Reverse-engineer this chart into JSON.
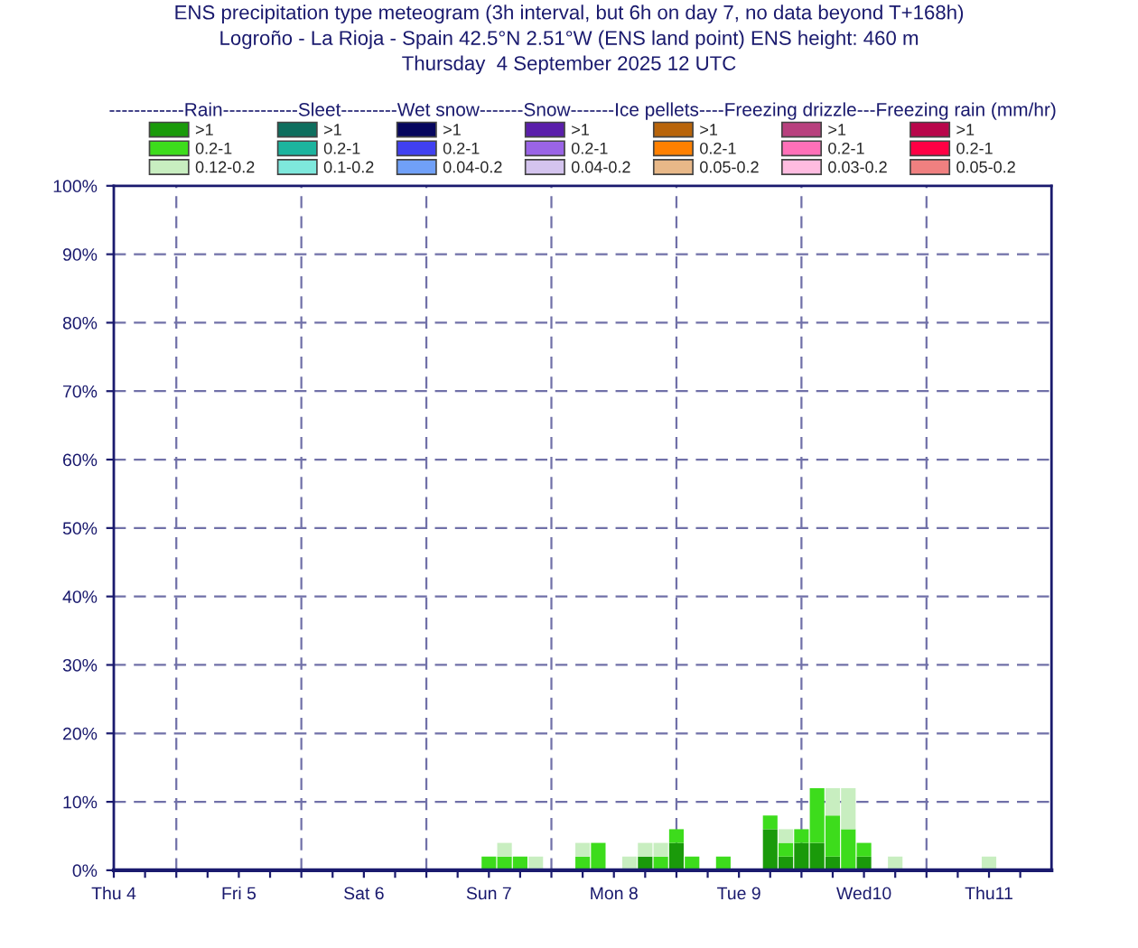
{
  "chart_data": {
    "type": "bar",
    "stacked": true,
    "title": "ENS precipitation type meteogram (3h interval, but 6h on day 7, no data beyond T+168h)",
    "subtitle": "Logroño - La Rioja - Spain 42.5°N 2.51°W (ENS land point) ENS height: 460 m\nThursday  4 September 2025 12 UTC",
    "legend_title": "------------Rain------------Sleet---------Wet snow-------Snow-------Ice pellets----Freezing drizzle---Freezing rain (mm/hr)",
    "x": [
      "2025-09-07T00:00",
      "2025-09-07T03:00",
      "2025-09-07T06:00",
      "2025-09-07T09:00",
      "2025-09-07T18:00",
      "2025-09-07T21:00",
      "2025-09-08T03:00",
      "2025-09-08T06:00",
      "2025-09-08T09:00",
      "2025-09-08T12:00",
      "2025-09-08T15:00",
      "2025-09-08T21:00",
      "2025-09-09T06:00",
      "2025-09-09T09:00",
      "2025-09-09T12:00",
      "2025-09-09T15:00",
      "2025-09-09T18:00",
      "2025-09-09T21:00",
      "2025-09-10T00:00",
      "2025-09-10T06:00",
      "2025-09-11T00:00"
    ],
    "series": [
      {
        "name": ">1",
        "color": "#1a9a0a",
        "values": [
          0,
          0,
          0,
          0,
          0,
          0,
          0,
          2,
          0,
          4,
          0,
          0,
          6,
          2,
          4,
          4,
          2,
          0,
          2,
          0,
          0
        ]
      },
      {
        "name": "0.2-1",
        "color": "#3ddc1c",
        "values": [
          2,
          2,
          2,
          0,
          2,
          4,
          0,
          0,
          2,
          2,
          2,
          2,
          2,
          2,
          2,
          8,
          6,
          6,
          2,
          0,
          0
        ]
      },
      {
        "name": "0.12-0.2",
        "color": "#c8eec0",
        "values": [
          0,
          2,
          0,
          2,
          2,
          0,
          2,
          2,
          2,
          0,
          0,
          0,
          0,
          2,
          0,
          0,
          4,
          6,
          0,
          2,
          2
        ]
      },
      {
        "name": ">1",
        "color": "#0e6e5e",
        "values": [
          0,
          0,
          0,
          0,
          0,
          0,
          0,
          0,
          0,
          0,
          0,
          0,
          0,
          0,
          0,
          0,
          0,
          0,
          0,
          0,
          0
        ]
      },
      {
        "name": "0.2-1",
        "color": "#1cb49e",
        "values": [
          0,
          0,
          0,
          0,
          0,
          0,
          0,
          0,
          0,
          0,
          0,
          0,
          0,
          0,
          0,
          0,
          0,
          0,
          0,
          0,
          0
        ]
      },
      {
        "name": "0.1-0.2",
        "color": "#7ee8dc",
        "values": [
          0,
          0,
          0,
          0,
          0,
          0,
          0,
          0,
          0,
          0,
          0,
          0,
          0,
          0,
          0,
          0,
          0,
          0,
          0,
          0,
          0
        ]
      },
      {
        "name": ">1",
        "color": "#06065e",
        "values": [
          0,
          0,
          0,
          0,
          0,
          0,
          0,
          0,
          0,
          0,
          0,
          0,
          0,
          0,
          0,
          0,
          0,
          0,
          0,
          0,
          0
        ]
      },
      {
        "name": "0.2-1",
        "color": "#4040f0",
        "values": [
          0,
          0,
          0,
          0,
          0,
          0,
          0,
          0,
          0,
          0,
          0,
          0,
          0,
          0,
          0,
          0,
          0,
          0,
          0,
          0,
          0
        ]
      },
      {
        "name": "0.04-0.2",
        "color": "#70a0f8",
        "values": [
          0,
          0,
          0,
          0,
          0,
          0,
          0,
          0,
          0,
          0,
          0,
          0,
          0,
          0,
          0,
          0,
          0,
          0,
          0,
          0,
          0
        ]
      },
      {
        "name": ">1",
        "color": "#5a1eaa",
        "values": [
          0,
          0,
          0,
          0,
          0,
          0,
          0,
          0,
          0,
          0,
          0,
          0,
          0,
          0,
          0,
          0,
          0,
          0,
          0,
          0,
          0
        ]
      },
      {
        "name": "0.2-1",
        "color": "#9a64e6",
        "values": [
          0,
          0,
          0,
          0,
          0,
          0,
          0,
          0,
          0,
          0,
          0,
          0,
          0,
          0,
          0,
          0,
          0,
          0,
          0,
          0,
          0
        ]
      },
      {
        "name": "0.04-0.2",
        "color": "#d4c4ee",
        "values": [
          0,
          0,
          0,
          0,
          0,
          0,
          0,
          0,
          0,
          0,
          0,
          0,
          0,
          0,
          0,
          0,
          0,
          0,
          0,
          0,
          0
        ]
      },
      {
        "name": ">1",
        "color": "#b8640a",
        "values": [
          0,
          0,
          0,
          0,
          0,
          0,
          0,
          0,
          0,
          0,
          0,
          0,
          0,
          0,
          0,
          0,
          0,
          0,
          0,
          0,
          0
        ]
      },
      {
        "name": "0.2-1",
        "color": "#ff8000",
        "values": [
          0,
          0,
          0,
          0,
          0,
          0,
          0,
          0,
          0,
          0,
          0,
          0,
          0,
          0,
          0,
          0,
          0,
          0,
          0,
          0,
          0
        ]
      },
      {
        "name": "0.05-0.2",
        "color": "#e8b888",
        "values": [
          0,
          0,
          0,
          0,
          0,
          0,
          0,
          0,
          0,
          0,
          0,
          0,
          0,
          0,
          0,
          0,
          0,
          0,
          0,
          0,
          0
        ]
      },
      {
        "name": ">1",
        "color": "#b8407e",
        "values": [
          0,
          0,
          0,
          0,
          0,
          0,
          0,
          0,
          0,
          0,
          0,
          0,
          0,
          0,
          0,
          0,
          0,
          0,
          0,
          0,
          0
        ]
      },
      {
        "name": "0.2-1",
        "color": "#ff70b8",
        "values": [
          0,
          0,
          0,
          0,
          0,
          0,
          0,
          0,
          0,
          0,
          0,
          0,
          0,
          0,
          0,
          0,
          0,
          0,
          0,
          0,
          0
        ]
      },
      {
        "name": "0.03-0.2",
        "color": "#ffbce0",
        "values": [
          0,
          0,
          0,
          0,
          0,
          0,
          0,
          0,
          0,
          0,
          0,
          0,
          0,
          0,
          0,
          0,
          0,
          0,
          0,
          0,
          0
        ]
      },
      {
        "name": ">1",
        "color": "#b8064a",
        "values": [
          0,
          0,
          0,
          0,
          0,
          0,
          0,
          0,
          0,
          0,
          0,
          0,
          0,
          0,
          0,
          0,
          0,
          0,
          0,
          0,
          0
        ]
      },
      {
        "name": "0.2-1",
        "color": "#ff0044",
        "values": [
          0,
          0,
          0,
          0,
          0,
          0,
          0,
          0,
          0,
          0,
          0,
          0,
          0,
          0,
          0,
          0,
          0,
          0,
          0,
          0,
          0
        ]
      },
      {
        "name": "0.05-0.2",
        "color": "#f08080",
        "values": [
          0,
          0,
          0,
          0,
          0,
          0,
          0,
          0,
          0,
          0,
          0,
          0,
          0,
          0,
          0,
          0,
          0,
          0,
          0,
          0,
          0
        ]
      }
    ],
    "xlim": [
      "2025-09-04T00:00",
      "2025-09-11T12:00"
    ],
    "xticks": [
      {
        "value": "2025-09-04T00:00",
        "label": "Thu 4"
      },
      {
        "value": "2025-09-04T06:00",
        "label": null
      },
      {
        "value": "2025-09-04T12:00",
        "label": null
      },
      {
        "value": "2025-09-04T18:00",
        "label": null
      },
      {
        "value": "2025-09-05T00:00",
        "label": "Fri 5"
      },
      {
        "value": "2025-09-05T06:00",
        "label": null
      },
      {
        "value": "2025-09-05T12:00",
        "label": null
      },
      {
        "value": "2025-09-05T18:00",
        "label": null
      },
      {
        "value": "2025-09-06T00:00",
        "label": "Sat 6"
      },
      {
        "value": "2025-09-06T06:00",
        "label": null
      },
      {
        "value": "2025-09-06T12:00",
        "label": null
      },
      {
        "value": "2025-09-06T18:00",
        "label": null
      },
      {
        "value": "2025-09-07T00:00",
        "label": "Sun 7"
      },
      {
        "value": "2025-09-07T06:00",
        "label": null
      },
      {
        "value": "2025-09-07T12:00",
        "label": null
      },
      {
        "value": "2025-09-07T18:00",
        "label": null
      },
      {
        "value": "2025-09-08T00:00",
        "label": "Mon 8"
      },
      {
        "value": "2025-09-08T06:00",
        "label": null
      },
      {
        "value": "2025-09-08T12:00",
        "label": null
      },
      {
        "value": "2025-09-08T18:00",
        "label": null
      },
      {
        "value": "2025-09-09T00:00",
        "label": "Tue 9"
      },
      {
        "value": "2025-09-09T06:00",
        "label": null
      },
      {
        "value": "2025-09-09T12:00",
        "label": null
      },
      {
        "value": "2025-09-09T18:00",
        "label": null
      },
      {
        "value": "2025-09-10T00:00",
        "label": "Wed10"
      },
      {
        "value": "2025-09-10T06:00",
        "label": null
      },
      {
        "value": "2025-09-10T12:00",
        "label": null
      },
      {
        "value": "2025-09-10T18:00",
        "label": null
      },
      {
        "value": "2025-09-11T00:00",
        "label": "Thu11"
      },
      {
        "value": "2025-09-11T06:00",
        "label": null
      }
    ],
    "ref_lines": [
      {
        "axis": "x",
        "value": "2025-09-04T12:00",
        "line_style": "dashed",
        "color": "#7070a8"
      },
      {
        "axis": "x",
        "value": "2025-09-05T12:00",
        "line_style": "dashed",
        "color": "#7070a8"
      },
      {
        "axis": "x",
        "value": "2025-09-06T12:00",
        "line_style": "dashed",
        "color": "#7070a8"
      },
      {
        "axis": "x",
        "value": "2025-09-07T12:00",
        "line_style": "dashed",
        "color": "#7070a8"
      },
      {
        "axis": "x",
        "value": "2025-09-08T12:00",
        "line_style": "dashed",
        "color": "#7070a8"
      },
      {
        "axis": "x",
        "value": "2025-09-09T12:00",
        "line_style": "dashed",
        "color": "#7070a8"
      },
      {
        "axis": "x",
        "value": "2025-09-10T12:00",
        "line_style": "dashed",
        "color": "#7070a8"
      }
    ],
    "ylim": [
      0,
      100
    ],
    "yticks": [
      {
        "value": 0,
        "label": "0%"
      },
      {
        "value": 10,
        "label": "10%"
      },
      {
        "value": 20,
        "label": "20%"
      },
      {
        "value": 30,
        "label": "30%"
      },
      {
        "value": 40,
        "label": "40%"
      },
      {
        "value": 50,
        "label": "50%"
      },
      {
        "value": 60,
        "label": "60%"
      },
      {
        "value": 70,
        "label": "70%"
      },
      {
        "value": 80,
        "label": "80%"
      },
      {
        "value": 90,
        "label": "90%"
      },
      {
        "value": 100,
        "label": "100%"
      }
    ],
    "grid": "y",
    "legend": "top"
  }
}
